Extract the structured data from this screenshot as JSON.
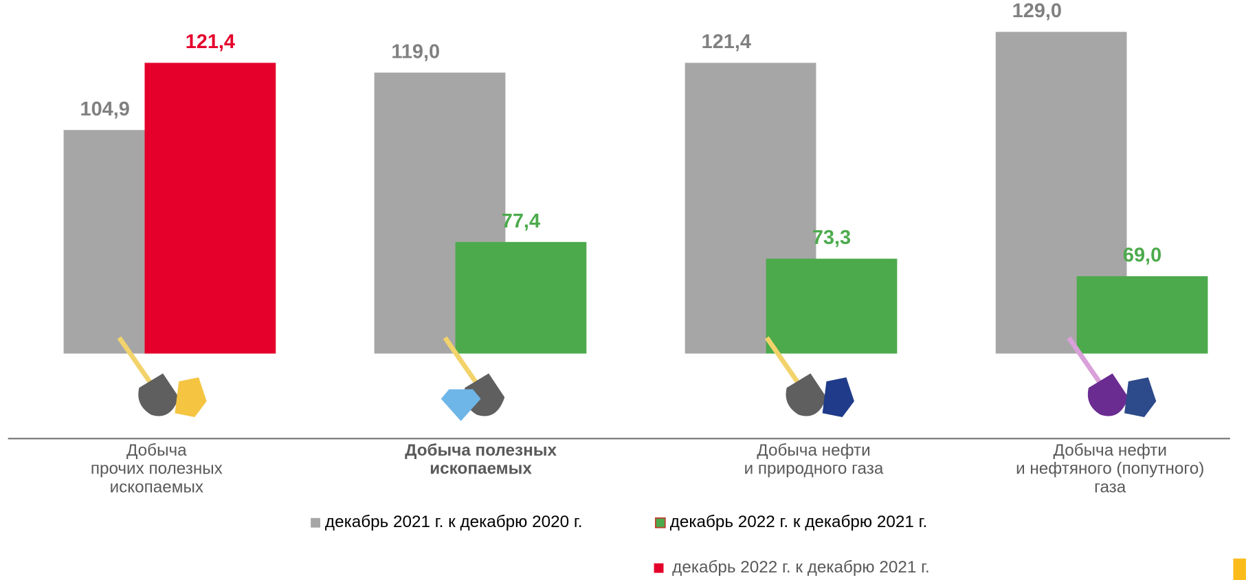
{
  "chart_data": {
    "type": "bar",
    "categories": [
      [
        "Добыча",
        "прочих полезных",
        "ископаемых"
      ],
      [
        "Добыча полезных",
        "ископаемых"
      ],
      [
        "Добыча нефти",
        "и природного газа"
      ],
      [
        "Добыча нефти",
        "и нефтяного (попутного)",
        "газа"
      ]
    ],
    "series": [
      {
        "name": "декабрь 2021 г. к декабрю 2020 г.",
        "color": "#a6a6a6",
        "values": [
          104.9,
          119.0,
          121.4,
          129.0
        ],
        "value_labels": [
          "104,9",
          "119,0",
          "121,4",
          "129,0"
        ]
      },
      {
        "name": "декабрь 2022 г. к декабрю 2021 г.",
        "color": "#4caa4c",
        "values": [
          null,
          77.4,
          73.3,
          69.0
        ],
        "value_labels": [
          null,
          "77,4",
          "73,3",
          "69,0"
        ]
      },
      {
        "name": "декабрь 2022 г. к декабрю 2021 г.",
        "color": "#e4002b",
        "values": [
          121.4,
          null,
          null,
          null
        ],
        "value_labels": [
          "121,4",
          null,
          null,
          null
        ]
      }
    ],
    "ylim": [
      50,
      130
    ]
  }
}
